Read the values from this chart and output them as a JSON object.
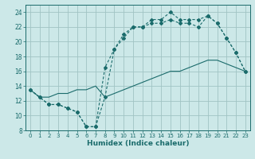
{
  "xlabel": "Humidex (Indice chaleur)",
  "bg_color": "#cce8e8",
  "grid_color": "#a0c4c4",
  "line_color": "#1a6b6b",
  "xlim": [
    -0.5,
    23.5
  ],
  "ylim": [
    8,
    25
  ],
  "xticks": [
    0,
    1,
    2,
    3,
    4,
    5,
    6,
    7,
    8,
    9,
    10,
    11,
    12,
    13,
    14,
    15,
    16,
    17,
    18,
    19,
    20,
    21,
    22,
    23
  ],
  "yticks": [
    8,
    10,
    12,
    14,
    16,
    18,
    20,
    22,
    24
  ],
  "line1_x": [
    0,
    1,
    2,
    3,
    4,
    5,
    6,
    7,
    8,
    9,
    10,
    11,
    12,
    13,
    14,
    15,
    16,
    17,
    18,
    19,
    20,
    21,
    22,
    23
  ],
  "line1_y": [
    13.5,
    12.5,
    11.5,
    11.5,
    11.0,
    10.5,
    8.5,
    8.5,
    16.5,
    19.0,
    20.5,
    22.0,
    22.0,
    22.5,
    22.5,
    23.0,
    22.5,
    22.5,
    22.0,
    23.5,
    22.5,
    20.5,
    18.5,
    16.0
  ],
  "line2_x": [
    0,
    1,
    2,
    3,
    4,
    5,
    6,
    7,
    8,
    9,
    10,
    11,
    12,
    13,
    14,
    15,
    16,
    17,
    18,
    19,
    20,
    21,
    22,
    23
  ],
  "line2_y": [
    13.5,
    12.5,
    11.5,
    11.5,
    11.0,
    10.5,
    8.5,
    8.5,
    12.5,
    19.0,
    21.0,
    22.0,
    22.0,
    23.0,
    23.0,
    24.0,
    23.0,
    23.0,
    23.0,
    23.5,
    22.5,
    20.5,
    18.5,
    16.0
  ],
  "line3_x": [
    0,
    1,
    2,
    3,
    4,
    5,
    6,
    7,
    8,
    9,
    10,
    11,
    12,
    13,
    14,
    15,
    16,
    17,
    18,
    19,
    20,
    21,
    22,
    23
  ],
  "line3_y": [
    13.5,
    12.5,
    12.5,
    13.0,
    13.0,
    13.5,
    13.5,
    14.0,
    12.5,
    13.0,
    13.5,
    14.0,
    14.5,
    15.0,
    15.5,
    16.0,
    16.0,
    16.5,
    17.0,
    17.5,
    17.5,
    17.0,
    16.5,
    16.0
  ]
}
